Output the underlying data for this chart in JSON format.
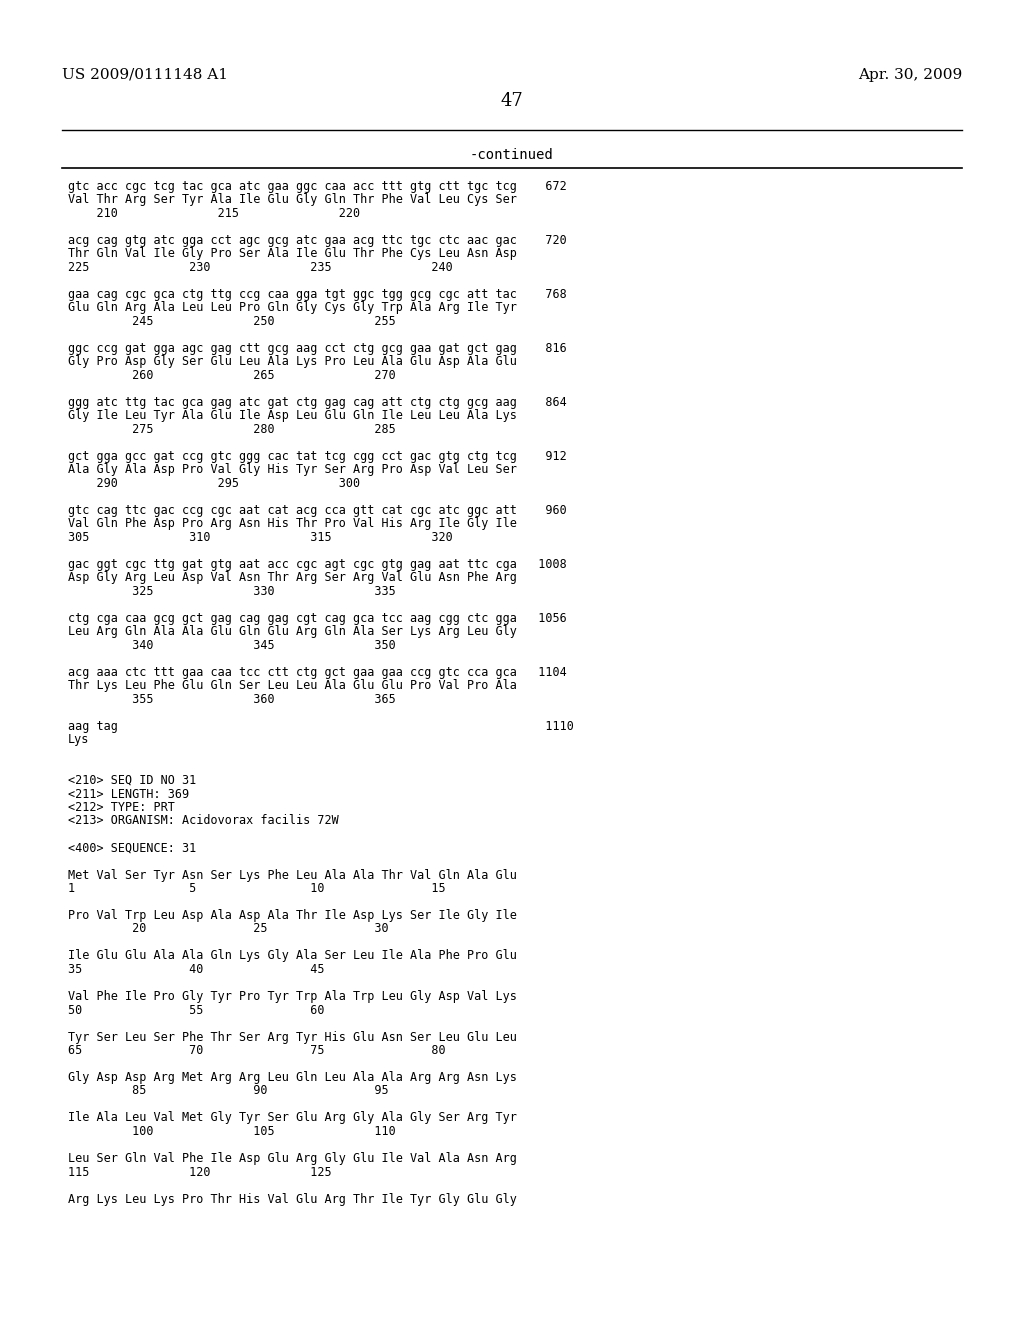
{
  "header_left": "US 2009/0111148 A1",
  "header_right": "Apr. 30, 2009",
  "page_number": "47",
  "continued_label": "-continued",
  "background_color": "#ffffff",
  "text_color": "#000000",
  "font_size_header": 11,
  "font_size_page": 13,
  "font_size_continued": 10,
  "font_size_body": 8.5,
  "monospace_font": "DejaVu Sans Mono",
  "serif_font": "DejaVu Serif",
  "content_lines": [
    "gtc acc cgc tcg tac gca atc gaa ggc caa acc ttt gtg ctt tgc tcg    672",
    "Val Thr Arg Ser Tyr Ala Ile Glu Gly Gln Thr Phe Val Leu Cys Ser",
    "    210              215              220",
    "",
    "acg cag gtg atc gga cct agc gcg atc gaa acg ttc tgc ctc aac gac    720",
    "Thr Gln Val Ile Gly Pro Ser Ala Ile Glu Thr Phe Cys Leu Asn Asp",
    "225              230              235              240",
    "",
    "gaa cag cgc gca ctg ttg ccg caa gga tgt ggc tgg gcg cgc att tac    768",
    "Glu Gln Arg Ala Leu Leu Pro Gln Gly Cys Gly Trp Ala Arg Ile Tyr",
    "         245              250              255",
    "",
    "ggc ccg gat gga agc gag ctt gcg aag cct ctg gcg gaa gat gct gag    816",
    "Gly Pro Asp Gly Ser Glu Leu Ala Lys Pro Leu Ala Glu Asp Ala Glu",
    "         260              265              270",
    "",
    "ggg atc ttg tac gca gag atc gat ctg gag cag att ctg ctg gcg aag    864",
    "Gly Ile Leu Tyr Ala Glu Ile Asp Leu Glu Gln Ile Leu Leu Ala Lys",
    "         275              280              285",
    "",
    "gct gga gcc gat ccg gtc ggg cac tat tcg cgg cct gac gtg ctg tcg    912",
    "Ala Gly Ala Asp Pro Val Gly His Tyr Ser Arg Pro Asp Val Leu Ser",
    "    290              295              300",
    "",
    "gtc cag ttc gac ccg cgc aat cat acg cca gtt cat cgc atc ggc att    960",
    "Val Gln Phe Asp Pro Arg Asn His Thr Pro Val His Arg Ile Gly Ile",
    "305              310              315              320",
    "",
    "gac ggt cgc ttg gat gtg aat acc cgc agt cgc gtg gag aat ttc cga   1008",
    "Asp Gly Arg Leu Asp Val Asn Thr Arg Ser Arg Val Glu Asn Phe Arg",
    "         325              330              335",
    "",
    "ctg cga caa gcg gct gag cag gag cgt cag gca tcc aag cgg ctc gga   1056",
    "Leu Arg Gln Ala Ala Glu Gln Glu Arg Gln Ala Ser Lys Arg Leu Gly",
    "         340              345              350",
    "",
    "acg aaa ctc ttt gaa caa tcc ctt ctg gct gaa gaa ccg gtc cca gca   1104",
    "Thr Lys Leu Phe Glu Gln Ser Leu Leu Ala Glu Glu Pro Val Pro Ala",
    "         355              360              365",
    "",
    "aag tag                                                            1110",
    "Lys",
    "",
    "",
    "<210> SEQ ID NO 31",
    "<211> LENGTH: 369",
    "<212> TYPE: PRT",
    "<213> ORGANISM: Acidovorax facilis 72W",
    "",
    "<400> SEQUENCE: 31",
    "",
    "Met Val Ser Tyr Asn Ser Lys Phe Leu Ala Ala Thr Val Gln Ala Glu",
    "1                5                10               15",
    "",
    "Pro Val Trp Leu Asp Ala Asp Ala Thr Ile Asp Lys Ser Ile Gly Ile",
    "         20               25               30",
    "",
    "Ile Glu Glu Ala Ala Gln Lys Gly Ala Ser Leu Ile Ala Phe Pro Glu",
    "35               40               45",
    "",
    "Val Phe Ile Pro Gly Tyr Pro Tyr Trp Ala Trp Leu Gly Asp Val Lys",
    "50               55               60",
    "",
    "Tyr Ser Leu Ser Phe Thr Ser Arg Tyr His Glu Asn Ser Leu Glu Leu",
    "65               70               75               80",
    "",
    "Gly Asp Asp Arg Met Arg Arg Leu Gln Leu Ala Ala Arg Arg Asn Lys",
    "         85               90               95",
    "",
    "Ile Ala Leu Val Met Gly Tyr Ser Glu Arg Gly Ala Gly Ser Arg Tyr",
    "         100              105              110",
    "",
    "Leu Ser Gln Val Phe Ile Asp Glu Arg Gly Glu Ile Val Ala Asn Arg",
    "115              120              125",
    "",
    "Arg Lys Leu Lys Pro Thr His Val Glu Arg Thr Ile Tyr Gly Glu Gly"
  ]
}
